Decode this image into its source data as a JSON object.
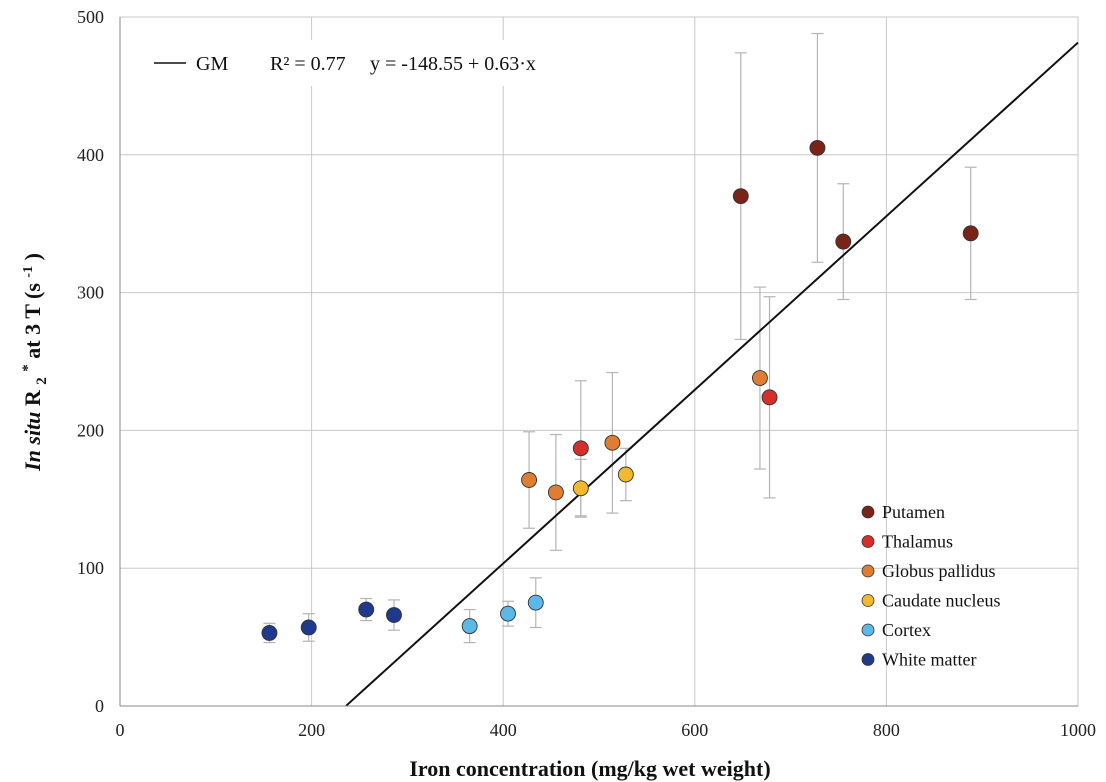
{
  "chart_data": {
    "type": "scatter",
    "xlabel": "Iron concentration (mg/kg wet weight)",
    "ylabel": {
      "italic": "In situ",
      "main": "R",
      "sub": "2",
      "sup_star": "*",
      "rest": " at 3 T (s",
      "exp": "-1",
      "close": ")"
    },
    "xlim": [
      0,
      1000
    ],
    "ylim": [
      0,
      500
    ],
    "xticks": [
      "0",
      "200",
      "400",
      "600",
      "800",
      "1000"
    ],
    "yticks": [
      "0",
      "100",
      "200",
      "300",
      "400",
      "500"
    ],
    "grid": true,
    "legend_position": "bottom-right",
    "series": [
      {
        "name": "Putamen",
        "color": "#7a2418",
        "points": [
          {
            "x": 648,
            "y": 370,
            "err": 104
          },
          {
            "x": 728,
            "y": 405,
            "err": 83
          },
          {
            "x": 755,
            "y": 337,
            "err": 42
          },
          {
            "x": 888,
            "y": 343,
            "err": 48
          }
        ]
      },
      {
        "name": "Thalamus",
        "color": "#d42f2a",
        "points": [
          {
            "x": 481,
            "y": 187,
            "err": 49
          },
          {
            "x": 678,
            "y": 224,
            "err": 73
          }
        ]
      },
      {
        "name": "Globus pallidus",
        "color": "#e07d35",
        "points": [
          {
            "x": 427,
            "y": 164,
            "err": 35
          },
          {
            "x": 455,
            "y": 155,
            "err": 42
          },
          {
            "x": 514,
            "y": 191,
            "err": 51
          },
          {
            "x": 668,
            "y": 238,
            "err": 66
          }
        ]
      },
      {
        "name": "Caudate nucleus",
        "color": "#f2b92e",
        "points": [
          {
            "x": 481,
            "y": 158,
            "err": 21
          },
          {
            "x": 528,
            "y": 168,
            "err": 19
          }
        ]
      },
      {
        "name": "Cortex",
        "color": "#5cb8e8",
        "points": [
          {
            "x": 365,
            "y": 58,
            "err": 12
          },
          {
            "x": 405,
            "y": 67,
            "err": 9
          },
          {
            "x": 434,
            "y": 75,
            "err": 18
          }
        ]
      },
      {
        "name": "White matter",
        "color": "#1f3a8c",
        "points": [
          {
            "x": 156,
            "y": 53,
            "err": 7
          },
          {
            "x": 197,
            "y": 57,
            "err": 10
          },
          {
            "x": 257,
            "y": 70,
            "err": 8
          },
          {
            "x": 286,
            "y": 66,
            "err": 11
          }
        ]
      }
    ],
    "fit": {
      "name": "GM",
      "r2_label": "R² = 0.77",
      "equation_label": "y = -148.55 + 0.63·x",
      "intercept": -148.55,
      "slope": 0.63,
      "x_range": [
        236,
        1000
      ],
      "color": "#111111"
    }
  }
}
